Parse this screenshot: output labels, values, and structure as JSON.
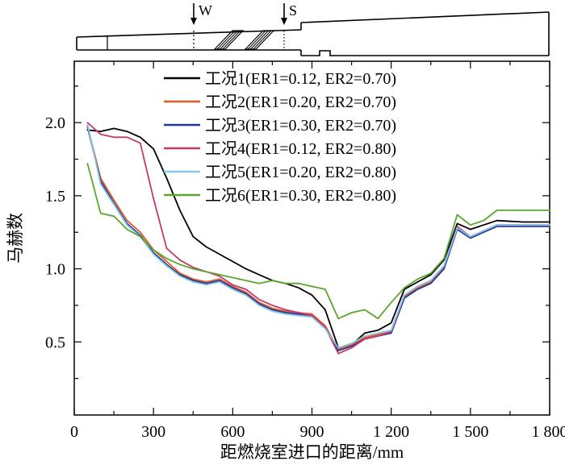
{
  "schematic": {
    "injector_w_label": "W",
    "injector_s_label": "S"
  },
  "chart_data": {
    "type": "line",
    "xlabel": "距燃烧室进口的距离/mm",
    "ylabel": "马赫数",
    "xlim": [
      0,
      1800
    ],
    "ylim": [
      0,
      2.42
    ],
    "grid": false,
    "legend_position": "top-center-inside",
    "xticks": {
      "values": [
        0,
        300,
        600,
        900,
        1200,
        1500,
        1800
      ],
      "labels": [
        "0",
        "300",
        "600",
        "900",
        "1 200",
        "1 500",
        "1 800"
      ],
      "minor": [
        150,
        450,
        750,
        1050,
        1350,
        1650
      ]
    },
    "yticks": {
      "values": [
        0.5,
        1.0,
        1.5,
        2.0
      ],
      "labels": [
        "0.5",
        "1.0",
        "1.5",
        "2.0"
      ],
      "minor": [
        0.25,
        0.75,
        1.25,
        1.75,
        2.25
      ]
    },
    "x": [
      50,
      100,
      150,
      200,
      250,
      300,
      350,
      400,
      450,
      500,
      550,
      600,
      650,
      700,
      750,
      800,
      850,
      900,
      950,
      1000,
      1050,
      1100,
      1150,
      1200,
      1250,
      1300,
      1350,
      1400,
      1450,
      1500,
      1550,
      1600,
      1700,
      1800
    ],
    "series": [
      {
        "name": "工况1(ER1=0.12, ER2=0.70)",
        "color": "#000000",
        "values": [
          1.95,
          1.94,
          1.96,
          1.94,
          1.9,
          1.82,
          1.62,
          1.4,
          1.22,
          1.15,
          1.1,
          1.05,
          1.0,
          0.96,
          0.92,
          0.9,
          0.87,
          0.82,
          0.72,
          0.46,
          0.48,
          0.56,
          0.58,
          0.63,
          0.86,
          0.91,
          0.96,
          1.06,
          1.31,
          1.27,
          1.3,
          1.33,
          1.32,
          1.32
        ]
      },
      {
        "name": "工况2(ER1=0.20, ER2=0.70)",
        "color": "#e4581e",
        "values": [
          1.98,
          1.62,
          1.47,
          1.33,
          1.25,
          1.13,
          1.05,
          0.97,
          0.93,
          0.91,
          0.93,
          0.88,
          0.84,
          0.77,
          0.73,
          0.71,
          0.7,
          0.69,
          0.61,
          0.45,
          0.48,
          0.53,
          0.55,
          0.57,
          0.81,
          0.87,
          0.91,
          1.01,
          1.28,
          1.22,
          1.26,
          1.3,
          1.3,
          1.3
        ]
      },
      {
        "name": "工况3(ER1=0.30, ER2=0.70)",
        "color": "#23389b",
        "values": [
          1.97,
          1.6,
          1.45,
          1.31,
          1.23,
          1.11,
          1.03,
          0.96,
          0.92,
          0.9,
          0.92,
          0.87,
          0.83,
          0.76,
          0.72,
          0.7,
          0.69,
          0.68,
          0.6,
          0.44,
          0.47,
          0.52,
          0.54,
          0.56,
          0.8,
          0.86,
          0.9,
          1.0,
          1.27,
          1.21,
          1.25,
          1.29,
          1.29,
          1.29
        ]
      },
      {
        "name": "工况4(ER1=0.12, ER2=0.80)",
        "color": "#c23a6f",
        "values": [
          2.0,
          1.92,
          1.9,
          1.9,
          1.86,
          1.48,
          1.14,
          1.06,
          1.01,
          0.98,
          0.95,
          0.89,
          0.86,
          0.79,
          0.75,
          0.72,
          0.7,
          0.68,
          0.6,
          0.42,
          0.46,
          0.52,
          0.54,
          0.57,
          0.82,
          0.88,
          0.92,
          1.02,
          1.29,
          1.22,
          1.26,
          1.3,
          1.3,
          1.3
        ]
      },
      {
        "name": "工况5(ER1=0.20, ER2=0.80)",
        "color": "#85c7e6",
        "values": [
          1.99,
          1.58,
          1.44,
          1.3,
          1.22,
          1.1,
          1.02,
          0.95,
          0.91,
          0.89,
          0.91,
          0.86,
          0.82,
          0.75,
          0.71,
          0.69,
          0.68,
          0.67,
          0.59,
          0.46,
          0.49,
          0.54,
          0.56,
          0.58,
          0.82,
          0.88,
          0.92,
          1.02,
          1.28,
          1.22,
          1.26,
          1.3,
          1.3,
          1.3
        ]
      },
      {
        "name": "工况6(ER1=0.30, ER2=0.80)",
        "color": "#5aa62c",
        "values": [
          1.72,
          1.38,
          1.36,
          1.27,
          1.22,
          1.13,
          1.07,
          1.03,
          1.0,
          0.98,
          0.96,
          0.94,
          0.92,
          0.9,
          0.92,
          0.9,
          0.9,
          0.88,
          0.86,
          0.66,
          0.7,
          0.72,
          0.66,
          0.77,
          0.87,
          0.93,
          0.97,
          1.07,
          1.37,
          1.3,
          1.33,
          1.4,
          1.4,
          1.4
        ]
      }
    ]
  }
}
